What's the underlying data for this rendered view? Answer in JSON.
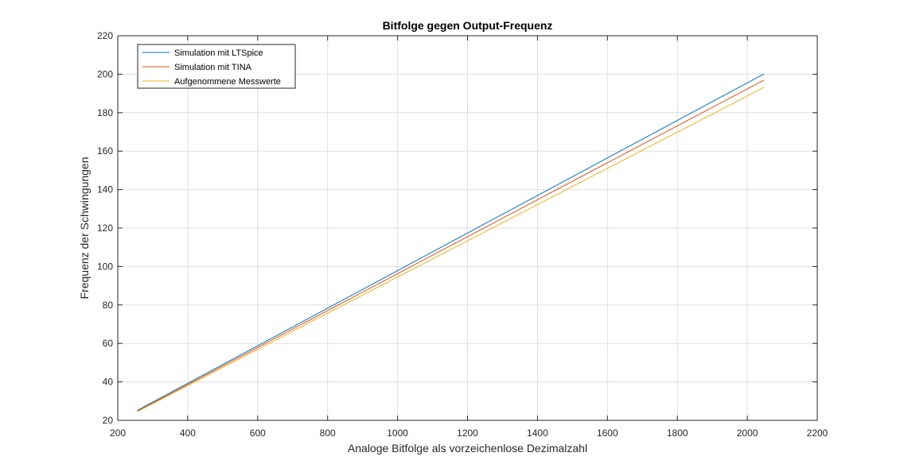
{
  "chart_data": {
    "type": "line",
    "title": "Bitfolge gegen Output-Frequenz",
    "xlabel": "Analoge Bitfolge als vorzeichenlose Dezimalzahl",
    "ylabel": "Frequenz der Schwingungen",
    "xlim": [
      200,
      2200
    ],
    "ylim": [
      20,
      220
    ],
    "xticks": [
      200,
      400,
      600,
      800,
      1000,
      1200,
      1400,
      1600,
      1800,
      2000,
      2200
    ],
    "yticks": [
      20,
      40,
      60,
      80,
      100,
      120,
      140,
      160,
      180,
      200,
      220
    ],
    "grid": true,
    "legend_position": "top-left",
    "series": [
      {
        "name": "Simulation mit LTSpice",
        "color": "#0072BD",
        "x": [
          256,
          2048
        ],
        "y": [
          25.2,
          200.2
        ]
      },
      {
        "name": "Simulation mit TINA",
        "color": "#D95319",
        "x": [
          256,
          2048
        ],
        "y": [
          24.8,
          197.0
        ]
      },
      {
        "name": "Aufgenommene Messwerte",
        "color": "#EDB120",
        "x": [
          256,
          2048
        ],
        "y": [
          24.5,
          193.2
        ]
      }
    ]
  }
}
